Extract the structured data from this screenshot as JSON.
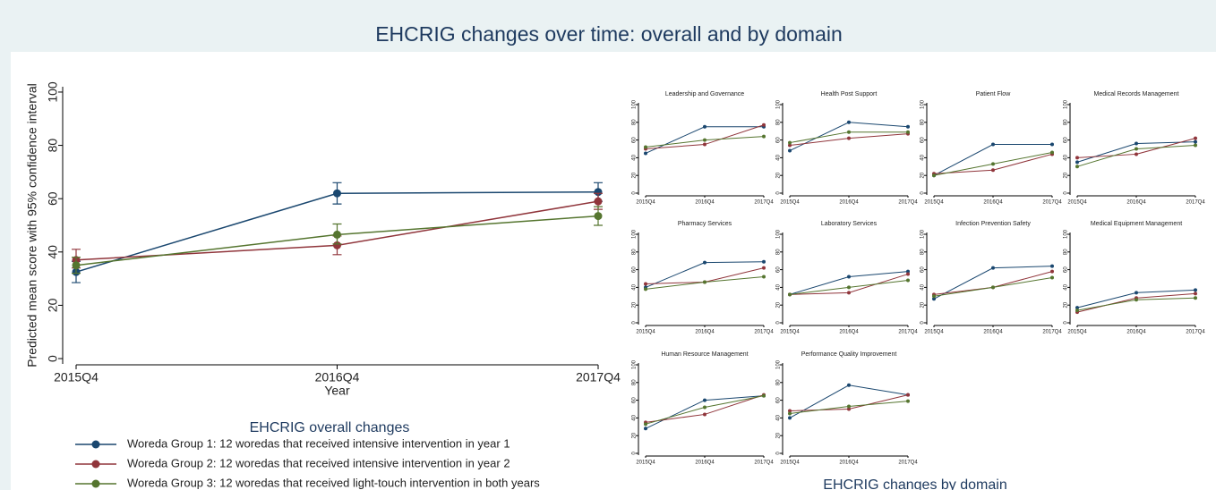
{
  "title": "EHCRIG changes over time: overall and by domain",
  "domain_caption": "EHCRIG changes by domain",
  "chart_data": [
    {
      "type": "line",
      "ylabel": "Predicted mean score with 95% confidence interval",
      "xlabel": "Year",
      "legend_title": "EHCRIG overall changes",
      "categories": [
        "2015Q4",
        "2016Q4",
        "2017Q4"
      ],
      "ylim": [
        -2,
        102
      ],
      "yticks": [
        0,
        20,
        40,
        60,
        80,
        100
      ],
      "series": [
        {
          "name": "Woreda Group 1: 12 woredas that received intensive intervention in year 1",
          "color": "#1a476f",
          "values": [
            32.5,
            62,
            62.5
          ],
          "lower": [
            28.5,
            58,
            59
          ],
          "upper": [
            36.5,
            66,
            66
          ]
        },
        {
          "name": "Woreda Group 2: 12 woredas that received intensive intervention in year 2",
          "color": "#90353b",
          "values": [
            37,
            42.5,
            59
          ],
          "lower": [
            34,
            39,
            56
          ],
          "upper": [
            41,
            46,
            62
          ]
        },
        {
          "name": "Woreda Group 3: 12 woredas that received light-touch intervention in both years",
          "color": "#55752f",
          "values": [
            35,
            46.5,
            53.5
          ],
          "lower": [
            32,
            43,
            50
          ],
          "upper": [
            38,
            50.5,
            57
          ]
        }
      ]
    },
    {
      "type": "line",
      "title": "Leadership and Governance",
      "categories": [
        "2015Q4",
        "2016Q4",
        "2017Q4"
      ],
      "ylim": [
        -2,
        102
      ],
      "yticks": [
        0,
        20,
        40,
        60,
        80,
        100
      ],
      "series": [
        {
          "color": "#1a476f",
          "values": [
            45,
            75,
            75
          ]
        },
        {
          "color": "#90353b",
          "values": [
            50,
            55,
            77
          ]
        },
        {
          "color": "#55752f",
          "values": [
            52,
            60,
            64
          ]
        }
      ]
    },
    {
      "type": "line",
      "title": "Health Post Support",
      "categories": [
        "2015Q4",
        "2016Q4",
        "2017Q4"
      ],
      "ylim": [
        -2,
        102
      ],
      "yticks": [
        0,
        20,
        40,
        60,
        80,
        100
      ],
      "series": [
        {
          "color": "#1a476f",
          "values": [
            48,
            80,
            75
          ]
        },
        {
          "color": "#90353b",
          "values": [
            54,
            62,
            67
          ]
        },
        {
          "color": "#55752f",
          "values": [
            57,
            69,
            69
          ]
        }
      ]
    },
    {
      "type": "line",
      "title": "Patient Flow",
      "categories": [
        "2015Q4",
        "2016Q4",
        "2017Q4"
      ],
      "ylim": [
        -2,
        102
      ],
      "yticks": [
        0,
        20,
        40,
        60,
        80,
        100
      ],
      "series": [
        {
          "color": "#1a476f",
          "values": [
            20,
            55,
            55
          ]
        },
        {
          "color": "#90353b",
          "values": [
            22,
            26,
            44
          ]
        },
        {
          "color": "#55752f",
          "values": [
            20,
            33,
            46
          ]
        }
      ]
    },
    {
      "type": "line",
      "title": "Medical Records Management",
      "categories": [
        "2015Q4",
        "2016Q4",
        "2017Q4"
      ],
      "ylim": [
        -2,
        102
      ],
      "yticks": [
        0,
        20,
        40,
        60,
        80,
        100
      ],
      "series": [
        {
          "color": "#1a476f",
          "values": [
            35,
            56,
            58
          ]
        },
        {
          "color": "#90353b",
          "values": [
            40,
            44,
            62
          ]
        },
        {
          "color": "#55752f",
          "values": [
            30,
            50,
            54
          ]
        }
      ]
    },
    {
      "type": "line",
      "title": "Pharmacy Services",
      "categories": [
        "2015Q4",
        "2016Q4",
        "2017Q4"
      ],
      "ylim": [
        -2,
        102
      ],
      "yticks": [
        0,
        20,
        40,
        60,
        80,
        100
      ],
      "series": [
        {
          "color": "#1a476f",
          "values": [
            40,
            68,
            69
          ]
        },
        {
          "color": "#90353b",
          "values": [
            44,
            46,
            62
          ]
        },
        {
          "color": "#55752f",
          "values": [
            38,
            46,
            52
          ]
        }
      ]
    },
    {
      "type": "line",
      "title": "Laboratory Services",
      "categories": [
        "2015Q4",
        "2016Q4",
        "2017Q4"
      ],
      "ylim": [
        -2,
        102
      ],
      "yticks": [
        0,
        20,
        40,
        60,
        80,
        100
      ],
      "series": [
        {
          "color": "#1a476f",
          "values": [
            32,
            52,
            58
          ]
        },
        {
          "color": "#90353b",
          "values": [
            32,
            34,
            55
          ]
        },
        {
          "color": "#55752f",
          "values": [
            32,
            40,
            48
          ]
        }
      ]
    },
    {
      "type": "line",
      "title": "Infection Prevention Safety",
      "categories": [
        "2015Q4",
        "2016Q4",
        "2017Q4"
      ],
      "ylim": [
        -2,
        102
      ],
      "yticks": [
        0,
        20,
        40,
        60,
        80,
        100
      ],
      "series": [
        {
          "color": "#1a476f",
          "values": [
            27,
            62,
            64
          ]
        },
        {
          "color": "#90353b",
          "values": [
            32,
            40,
            58
          ]
        },
        {
          "color": "#55752f",
          "values": [
            30,
            40,
            51
          ]
        }
      ]
    },
    {
      "type": "line",
      "title": "Medical Equipment Management",
      "categories": [
        "2015Q4",
        "2016Q4",
        "2017Q4"
      ],
      "ylim": [
        -2,
        102
      ],
      "yticks": [
        0,
        20,
        40,
        60,
        80,
        100
      ],
      "series": [
        {
          "color": "#1a476f",
          "values": [
            17,
            34,
            37
          ]
        },
        {
          "color": "#90353b",
          "values": [
            12,
            28,
            33
          ]
        },
        {
          "color": "#55752f",
          "values": [
            14,
            26,
            28
          ]
        }
      ]
    },
    {
      "type": "line",
      "title": "Human Resource Management",
      "categories": [
        "2015Q4",
        "2016Q4",
        "2017Q4"
      ],
      "ylim": [
        -2,
        102
      ],
      "yticks": [
        0,
        20,
        40,
        60,
        80,
        100
      ],
      "series": [
        {
          "color": "#1a476f",
          "values": [
            28,
            60,
            65
          ]
        },
        {
          "color": "#90353b",
          "values": [
            35,
            44,
            66
          ]
        },
        {
          "color": "#55752f",
          "values": [
            33,
            52,
            65
          ]
        }
      ]
    },
    {
      "type": "line",
      "title": "Performance Quality Improvement",
      "categories": [
        "2015Q4",
        "2016Q4",
        "2017Q4"
      ],
      "ylim": [
        -2,
        102
      ],
      "yticks": [
        0,
        20,
        40,
        60,
        80,
        100
      ],
      "series": [
        {
          "color": "#1a476f",
          "values": [
            40,
            77,
            66
          ]
        },
        {
          "color": "#90353b",
          "values": [
            48,
            50,
            66
          ]
        },
        {
          "color": "#55752f",
          "values": [
            45,
            53,
            59
          ]
        }
      ]
    }
  ]
}
